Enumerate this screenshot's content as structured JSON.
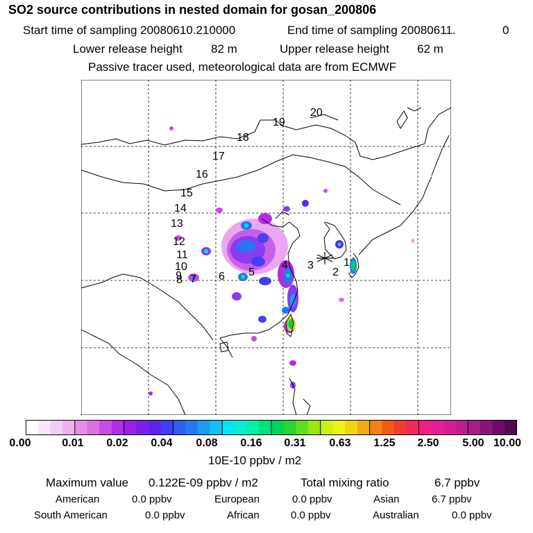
{
  "header": {
    "title": "SO2 source contributions in nested domain for gosan_200806",
    "start_label": "Start time of sampling 20080610.210000",
    "end_label": "End time of sampling 20080611.",
    "end_suffix": "0",
    "lower_label": "Lower release height",
    "lower_value": "82 m",
    "upper_label": "Upper release height",
    "upper_value": "62 m",
    "tracer_note": "Passive tracer used, meteorological data are from ECMWF"
  },
  "map": {
    "trajectory_labels": [
      "1",
      "2",
      "3",
      "4",
      "5",
      "6",
      "7",
      "8",
      "9",
      "10",
      "11",
      "12",
      "13",
      "14",
      "15",
      "16",
      "17",
      "18",
      "19",
      "20"
    ],
    "receptor_symbol": "*",
    "colors": {
      "coast": "#000000",
      "grid": "#000000"
    }
  },
  "colorbar": {
    "colors": [
      "#ffffff",
      "#fbe6fb",
      "#f4cbf4",
      "#eeb0ef",
      "#e58ee8",
      "#dc6fe2",
      "#c94be2",
      "#b32be2",
      "#9c1fe6",
      "#7d1fea",
      "#5e26ed",
      "#4040f0",
      "#2f5cf2",
      "#2479f2",
      "#1f9cf0",
      "#14bef0",
      "#00e6f0",
      "#00f0d0",
      "#00f0a8",
      "#00e07e",
      "#00d35a",
      "#2ad232",
      "#62dc1e",
      "#9ae614",
      "#cdf014",
      "#f0f014",
      "#f0d214",
      "#f0aa14",
      "#f08214",
      "#f05a14",
      "#f03c32",
      "#f0285a",
      "#f01e82",
      "#e61e96",
      "#d21e96",
      "#be1e8c",
      "#a81e82",
      "#8c1478",
      "#6e0a6e",
      "#500a50"
    ],
    "ticks": [
      "0.00",
      "0.01",
      "0.02",
      "0.04",
      "0.08",
      "0.16",
      "0.31",
      "0.63",
      "1.25",
      "2.50",
      "5.00",
      "10.00"
    ],
    "unit": "10E-10 ppbv / m2"
  },
  "summary": {
    "max_label": "Maximum value",
    "max_value": "0.122E-09 ppbv / m2",
    "total_label": "Total mixing ratio",
    "total_value": "6.7 ppbv",
    "regions": [
      {
        "name": "American",
        "value": "0.0 ppbv"
      },
      {
        "name": "European",
        "value": "0.0 ppbv"
      },
      {
        "name": "Asian",
        "value": "6.7 ppbv"
      },
      {
        "name": "South American",
        "value": "0.0 ppbv"
      },
      {
        "name": "African",
        "value": "0.0 ppbv"
      },
      {
        "name": "Australian",
        "value": "0.0 ppbv"
      }
    ]
  }
}
